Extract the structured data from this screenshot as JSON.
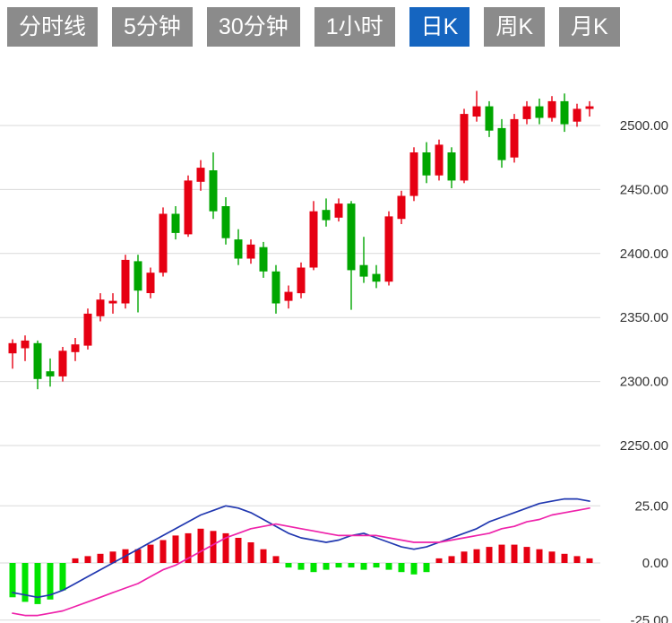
{
  "toolbar": {
    "tabs": [
      {
        "label": "分时线",
        "active": false
      },
      {
        "label": "5分钟",
        "active": false
      },
      {
        "label": "30分钟",
        "active": false
      },
      {
        "label": "1小时",
        "active": false
      },
      {
        "label": "日K",
        "active": true
      },
      {
        "label": "周K",
        "active": false
      },
      {
        "label": "月K",
        "active": false
      }
    ]
  },
  "colors": {
    "up": "#e60012",
    "down": "#00a600",
    "macd_up": "#e60012",
    "macd_down": "#00e400",
    "dif_line": "#2138b0",
    "dea_line": "#ee22aa",
    "tab_bg": "#8b8b8b",
    "tab_active_bg": "#1565c0",
    "grid": "#d9d9d9",
    "axis_text": "#333333"
  },
  "chart_data": {
    "type": "candlestick",
    "sub_indicator": "MACD",
    "selected_period": "日K",
    "price_axis_labels": [
      "2500.00",
      "2450.00",
      "2400.00",
      "2350.00",
      "2300.00",
      "2250.00"
    ],
    "price_axis_values": [
      2500,
      2450,
      2400,
      2350,
      2300,
      2250
    ],
    "macd_axis_labels": [
      "25.00",
      "0.00",
      "-25.00"
    ],
    "macd_axis_values": [
      25,
      0,
      -25
    ],
    "price_range": [
      2230,
      2555
    ],
    "macd_range": [
      -30,
      30
    ],
    "grid": true,
    "candles": [
      [
        2322,
        2333,
        2310,
        2330
      ],
      [
        2326,
        2336,
        2316,
        2332
      ],
      [
        2330,
        2332,
        2294,
        2302
      ],
      [
        2308,
        2318,
        2296,
        2304
      ],
      [
        2304,
        2327,
        2300,
        2324
      ],
      [
        2323,
        2334,
        2316,
        2329
      ],
      [
        2328,
        2357,
        2325,
        2353
      ],
      [
        2351,
        2369,
        2347,
        2364
      ],
      [
        2361,
        2369,
        2353,
        2363
      ],
      [
        2361,
        2399,
        2357,
        2395
      ],
      [
        2394,
        2399,
        2354,
        2371
      ],
      [
        2369,
        2389,
        2365,
        2385
      ],
      [
        2385,
        2436,
        2382,
        2431
      ],
      [
        2431,
        2437,
        2411,
        2416
      ],
      [
        2415,
        2461,
        2413,
        2457
      ],
      [
        2456,
        2473,
        2449,
        2467
      ],
      [
        2465,
        2479,
        2427,
        2433
      ],
      [
        2437,
        2444,
        2407,
        2412
      ],
      [
        2411,
        2419,
        2391,
        2396
      ],
      [
        2396,
        2411,
        2392,
        2407
      ],
      [
        2405,
        2409,
        2381,
        2386
      ],
      [
        2386,
        2391,
        2353,
        2361
      ],
      [
        2363,
        2375,
        2357,
        2370
      ],
      [
        2369,
        2393,
        2365,
        2389
      ],
      [
        2389,
        2441,
        2387,
        2433
      ],
      [
        2434,
        2443,
        2421,
        2426
      ],
      [
        2428,
        2443,
        2425,
        2439
      ],
      [
        2439,
        2441,
        2356,
        2387
      ],
      [
        2391,
        2413,
        2377,
        2382
      ],
      [
        2384,
        2391,
        2373,
        2378
      ],
      [
        2378,
        2433,
        2375,
        2429
      ],
      [
        2427,
        2449,
        2423,
        2445
      ],
      [
        2445,
        2483,
        2441,
        2479
      ],
      [
        2479,
        2487,
        2455,
        2461
      ],
      [
        2461,
        2489,
        2457,
        2485
      ],
      [
        2479,
        2483,
        2451,
        2457
      ],
      [
        2457,
        2513,
        2455,
        2509
      ],
      [
        2507,
        2527,
        2503,
        2515
      ],
      [
        2515,
        2519,
        2491,
        2496
      ],
      [
        2498,
        2505,
        2467,
        2473
      ],
      [
        2475,
        2509,
        2471,
        2505
      ],
      [
        2505,
        2519,
        2501,
        2515
      ],
      [
        2515,
        2521,
        2501,
        2506
      ],
      [
        2506,
        2523,
        2503,
        2519
      ],
      [
        2519,
        2525,
        2495,
        2501
      ],
      [
        2503,
        2517,
        2499,
        2513
      ],
      [
        2513,
        2519,
        2507,
        2515
      ]
    ],
    "macd": {
      "hist": [
        -15,
        -17,
        -18,
        -16,
        -12,
        2,
        3,
        4,
        5,
        6,
        6,
        8,
        10,
        12,
        13,
        15,
        14,
        13,
        11,
        9,
        6,
        3,
        -2,
        -3,
        -4,
        -3,
        -2,
        -2,
        -3,
        -2,
        -3,
        -4,
        -5,
        -4,
        2,
        3,
        5,
        6,
        7,
        8,
        8,
        7,
        6,
        5,
        4,
        3,
        2
      ],
      "dif": [
        -13,
        -14,
        -15,
        -14,
        -12,
        -9,
        -6,
        -3,
        0,
        3,
        6,
        9,
        12,
        15,
        18,
        21,
        23,
        25,
        24,
        22,
        19,
        16,
        13,
        11,
        10,
        9,
        10,
        12,
        13,
        11,
        9,
        7,
        6,
        7,
        9,
        11,
        13,
        15,
        18,
        20,
        22,
        24,
        26,
        27,
        28,
        28,
        27
      ],
      "dea": [
        -22,
        -23,
        -23,
        -22,
        -21,
        -19,
        -17,
        -15,
        -13,
        -11,
        -9,
        -6,
        -3,
        -1,
        2,
        5,
        8,
        11,
        13,
        15,
        16,
        17,
        16,
        15,
        14,
        13,
        12,
        12,
        12,
        12,
        11,
        10,
        9,
        9,
        9,
        10,
        11,
        12,
        13,
        15,
        16,
        18,
        19,
        21,
        22,
        23,
        24
      ]
    }
  }
}
